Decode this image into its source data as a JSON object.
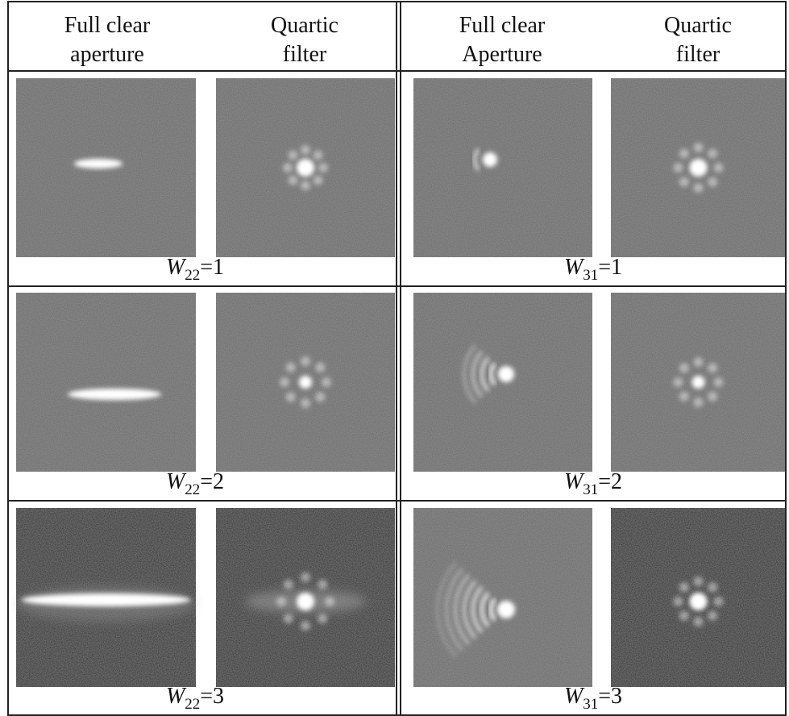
{
  "columns": [
    {
      "headers": [
        [
          "Full clear",
          "aperture"
        ],
        [
          "Quartic",
          "filter"
        ]
      ],
      "labels": [
        {
          "symbol": "W",
          "subscript": "22",
          "suffix": "=1"
        },
        {
          "symbol": "W",
          "subscript": "22",
          "suffix": "=2"
        },
        {
          "symbol": "W",
          "subscript": "22",
          "suffix": "=3"
        }
      ]
    },
    {
      "headers": [
        [
          "Full clear",
          "Aperture"
        ],
        [
          "Quartic",
          "filter"
        ]
      ],
      "labels": [
        {
          "symbol": "W",
          "subscript": "31",
          "suffix": "=1"
        },
        {
          "symbol": "W",
          "subscript": "31",
          "suffix": "=2"
        },
        {
          "symbol": "W",
          "subscript": "31",
          "suffix": "=3"
        }
      ]
    }
  ]
}
